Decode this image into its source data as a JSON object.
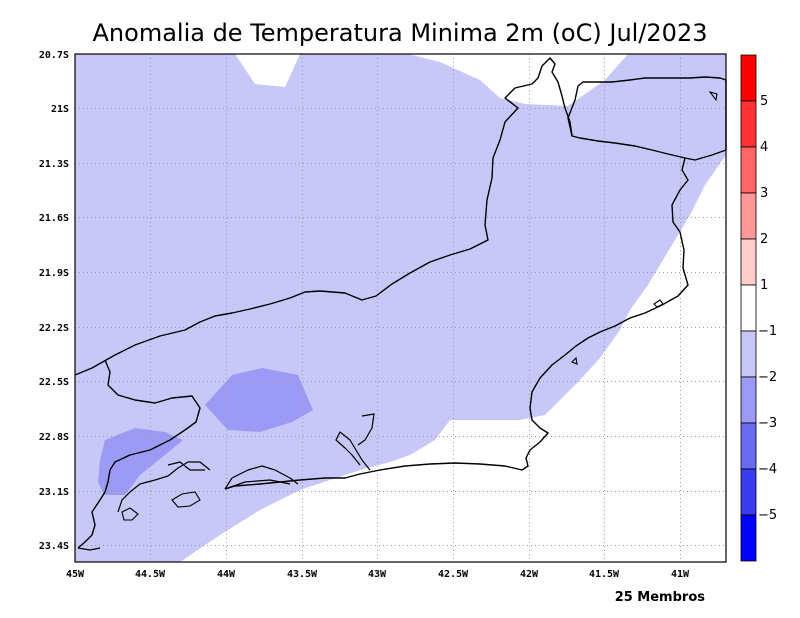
{
  "title": "Anomalia de Temperatura Minima 2m (oC) Jul/2023",
  "footnote": "25 Membros",
  "map": {
    "lon_ticks": [
      "45W",
      "44.5W",
      "44W",
      "43.5W",
      "43W",
      "42.5W",
      "42W",
      "41.5W",
      "41W"
    ],
    "lat_ticks": [
      "20.7S",
      "21S",
      "21.3S",
      "21.6S",
      "21.9S",
      "22.2S",
      "22.5S",
      "22.8S",
      "23.1S",
      "23.4S"
    ],
    "grid": true
  },
  "colorbar": {
    "labels": [
      "5",
      "4",
      "3",
      "2",
      "1",
      "−1",
      "−2",
      "−3",
      "−4",
      "−5"
    ],
    "colors": [
      "#ff0000",
      "#ff3333",
      "#ff6666",
      "#ff9999",
      "#ffcccc",
      "#ffffff",
      "#c8c8f8",
      "#9b9bf5",
      "#6b6bf2",
      "#3b3bf0",
      "#0000ff"
    ]
  },
  "fields": {
    "anomaly_m1_m2": "#c8c8f8",
    "anomaly_m2_m3": "#9b9bf5"
  }
}
